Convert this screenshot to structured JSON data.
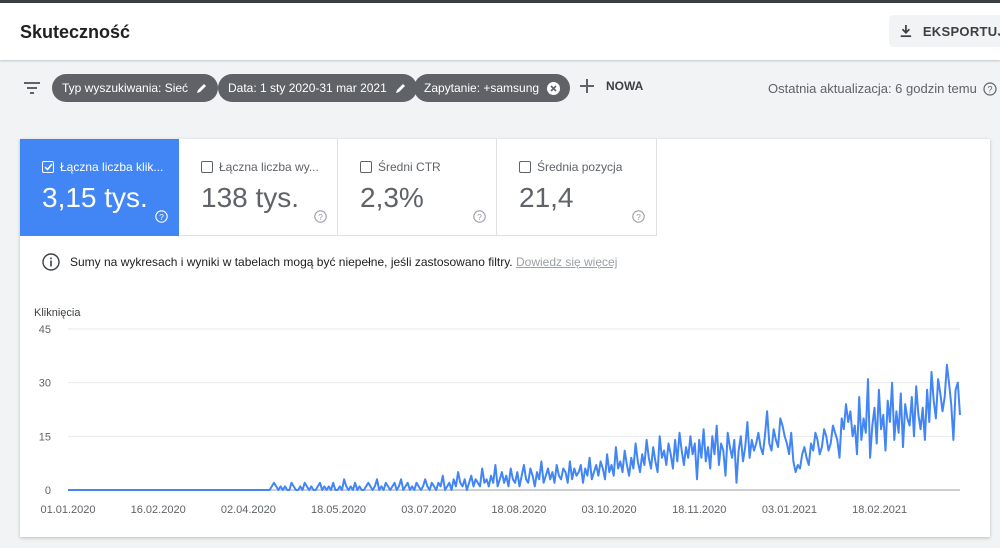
{
  "header": {
    "title": "Skuteczność",
    "export_label": "EKSPORTUJ"
  },
  "filters": {
    "chips": [
      {
        "label": "Typ wyszukiwania: Sieć",
        "action_icon": "edit-icon"
      },
      {
        "label": "Data: 1 sty 2020-31 mar 2021",
        "action_icon": "edit-icon"
      },
      {
        "label": "Zapytanie: +samsung",
        "action_icon": "close-circle-icon"
      }
    ],
    "new_label": "NOWA",
    "last_update": "Ostatnia aktualizacja: 6 godzin temu"
  },
  "metrics": [
    {
      "label": "Łączna liczba klik...",
      "value": "3,15 tys.",
      "checked": true
    },
    {
      "label": "Łączna liczba wy...",
      "value": "138 tys.",
      "checked": false
    },
    {
      "label": "Średni CTR",
      "value": "2,3%",
      "checked": false
    },
    {
      "label": "Średnia pozycja",
      "value": "21,4",
      "checked": false
    }
  ],
  "notice": {
    "text": "Sumy na wykresach i wyniki w tabelach mogą być niepełne, jeśli zastosowano filtry.",
    "link": "Dowiedz się więcej"
  },
  "colors": {
    "accent": "#4285f4",
    "chip": "#5f6368",
    "line": "#4285f4"
  },
  "chart_data": {
    "type": "line",
    "ylabel": "Kliknięcia",
    "ylim": [
      0,
      45
    ],
    "yticks": [
      0,
      15,
      30,
      45
    ],
    "xticks": [
      "01.01.2020",
      "16.02.2020",
      "02.04.2020",
      "18.05.2020",
      "03.07.2020",
      "18.08.2020",
      "03.10.2020",
      "18.11.2020",
      "03.01.2021",
      "18.02.2021"
    ],
    "x_start": "2020-01-01",
    "x_end": "2021-03-31",
    "grid": true,
    "series": [
      {
        "values": [
          0,
          0,
          0,
          0,
          0,
          0,
          0,
          0,
          0,
          0,
          0,
          0,
          0,
          0,
          0,
          0,
          0,
          0,
          0,
          0,
          0,
          0,
          0,
          0,
          0,
          0,
          0,
          0,
          0,
          0,
          0,
          0,
          0,
          0,
          0,
          0,
          0,
          0,
          0,
          0,
          0,
          0,
          0,
          0,
          0,
          0,
          0,
          0,
          0,
          0,
          0,
          0,
          0,
          0,
          0,
          0,
          0,
          0,
          0,
          0,
          0,
          0,
          0,
          0,
          0,
          0,
          0,
          0,
          0,
          0,
          0,
          0,
          0,
          0,
          0,
          0,
          0,
          0,
          0,
          0,
          0,
          0,
          0,
          0,
          0,
          0,
          0,
          0,
          0,
          0,
          0,
          0,
          0,
          1,
          2,
          1,
          0,
          1,
          0,
          1,
          0,
          0,
          2,
          1,
          0,
          0,
          1,
          0,
          2,
          1,
          0,
          1,
          0,
          0,
          1,
          2,
          0,
          1,
          0,
          1,
          0,
          2,
          0,
          0,
          1,
          0,
          3,
          1,
          0,
          1,
          0,
          2,
          0,
          1,
          0,
          0,
          1,
          2,
          1,
          0,
          1,
          3,
          0,
          1,
          0,
          2,
          1,
          0,
          1,
          2,
          0,
          1,
          3,
          0,
          1,
          2,
          0,
          1,
          0,
          2,
          1,
          0,
          1,
          3,
          1,
          0,
          2,
          1,
          0,
          2,
          1,
          4,
          0,
          1,
          2,
          0,
          3,
          1,
          5,
          2,
          1,
          3,
          0,
          2,
          4,
          1,
          3,
          2,
          1,
          6,
          2,
          3,
          1,
          4,
          2,
          7,
          1,
          3,
          5,
          2,
          4,
          1,
          6,
          3,
          2,
          5,
          1,
          4,
          7,
          3,
          2,
          6,
          4,
          1,
          5,
          3,
          8,
          2,
          4,
          6,
          3,
          5,
          2,
          7,
          4,
          3,
          6,
          5,
          2,
          8,
          3,
          6,
          4,
          5,
          7,
          2,
          6,
          4,
          9,
          3,
          5,
          7,
          4,
          8,
          6,
          3,
          10,
          5,
          7,
          4,
          12,
          6,
          8,
          5,
          11,
          7,
          4,
          9,
          6,
          13,
          8,
          5,
          10,
          7,
          14,
          9,
          6,
          12,
          8,
          5,
          15,
          9,
          11,
          7,
          13,
          10,
          6,
          14,
          8,
          16,
          11,
          7,
          12,
          9,
          15,
          10,
          13,
          3,
          14,
          9,
          17,
          8,
          12,
          6,
          15,
          10,
          18,
          7,
          13,
          11,
          4,
          16,
          12,
          9,
          14,
          2,
          11,
          15,
          8,
          12,
          19,
          9,
          14,
          11,
          13,
          16,
          12,
          10,
          15,
          22,
          13,
          11,
          17,
          14,
          12,
          20,
          18,
          15,
          13,
          10,
          16,
          8,
          5,
          7,
          6,
          10,
          12,
          9,
          7,
          13,
          11,
          16,
          14,
          10,
          12,
          17,
          15,
          11,
          13,
          18,
          16,
          14,
          9,
          20,
          17,
          24,
          19,
          22,
          15,
          18,
          10,
          26,
          14,
          20,
          16,
          31,
          9,
          18,
          23,
          13,
          28,
          17,
          21,
          11,
          25,
          19,
          30,
          14,
          22,
          16,
          27,
          12,
          24,
          20,
          18,
          26,
          15,
          29,
          21,
          17,
          23,
          14,
          28,
          19,
          33,
          25,
          20,
          31,
          27,
          22,
          26,
          35,
          30,
          24,
          14,
          28,
          30,
          21
        ]
      }
    ]
  }
}
